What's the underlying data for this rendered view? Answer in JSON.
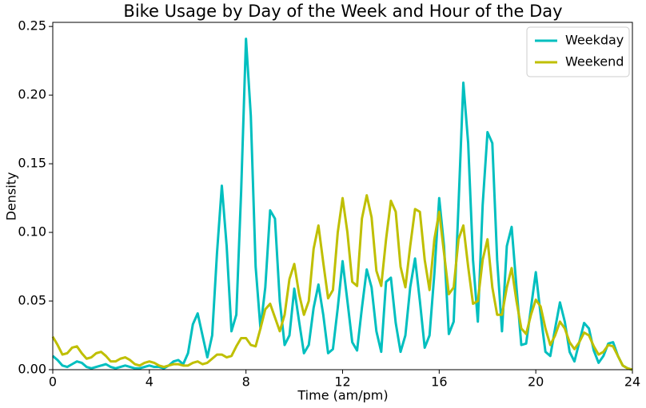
{
  "chart_data": {
    "type": "line",
    "title": "Bike Usage by Day of the Week and Hour of the Day",
    "x_label": "Time (am/pm)",
    "y_label": "Density",
    "x": [
      0,
      0.2,
      0.4,
      0.6,
      0.8,
      1,
      1.2,
      1.4,
      1.6,
      1.8,
      2,
      2.2,
      2.4,
      2.6,
      2.8,
      3,
      3.2,
      3.4,
      3.6,
      3.8,
      4,
      4.2,
      4.4,
      4.6,
      4.8,
      5,
      5.2,
      5.4,
      5.6,
      5.8,
      6,
      6.2,
      6.4,
      6.6,
      6.8,
      7,
      7.2,
      7.4,
      7.6,
      7.8,
      8,
      8.2,
      8.4,
      8.6,
      8.8,
      9,
      9.2,
      9.4,
      9.6,
      9.8,
      10,
      10.2,
      10.4,
      10.6,
      10.8,
      11,
      11.2,
      11.4,
      11.6,
      11.8,
      12,
      12.2,
      12.4,
      12.6,
      12.8,
      13,
      13.2,
      13.4,
      13.6,
      13.8,
      14,
      14.2,
      14.4,
      14.6,
      14.8,
      15,
      15.2,
      15.4,
      15.6,
      15.8,
      16,
      16.2,
      16.4,
      16.6,
      16.8,
      17,
      17.2,
      17.4,
      17.6,
      17.8,
      18,
      18.2,
      18.4,
      18.6,
      18.8,
      19,
      19.2,
      19.4,
      19.6,
      19.8,
      20,
      20.2,
      20.4,
      20.6,
      20.8,
      21,
      21.2,
      21.4,
      21.6,
      21.8,
      22,
      22.2,
      22.4,
      22.6,
      22.8,
      23,
      23.2,
      23.4,
      23.6,
      23.8,
      24
    ],
    "series": [
      {
        "name": "Weekday",
        "color": "#00bfbf",
        "values": [
          0.01,
          0.007,
          0.003,
          0.002,
          0.004,
          0.006,
          0.005,
          0.002,
          0.001,
          0.002,
          0.003,
          0.004,
          0.002,
          0.001,
          0.002,
          0.003,
          0.002,
          0.001,
          0.001,
          0.002,
          0.003,
          0.002,
          0.002,
          0.001,
          0.003,
          0.006,
          0.007,
          0.004,
          0.012,
          0.033,
          0.041,
          0.025,
          0.009,
          0.025,
          0.085,
          0.134,
          0.09,
          0.028,
          0.04,
          0.13,
          0.241,
          0.185,
          0.075,
          0.03,
          0.06,
          0.116,
          0.11,
          0.05,
          0.018,
          0.025,
          0.059,
          0.035,
          0.012,
          0.018,
          0.045,
          0.062,
          0.04,
          0.012,
          0.015,
          0.045,
          0.079,
          0.05,
          0.02,
          0.014,
          0.045,
          0.073,
          0.06,
          0.028,
          0.013,
          0.064,
          0.067,
          0.034,
          0.013,
          0.025,
          0.06,
          0.081,
          0.05,
          0.016,
          0.025,
          0.07,
          0.125,
          0.09,
          0.026,
          0.035,
          0.12,
          0.209,
          0.165,
          0.08,
          0.035,
          0.12,
          0.173,
          0.165,
          0.08,
          0.028,
          0.09,
          0.104,
          0.06,
          0.018,
          0.019,
          0.045,
          0.071,
          0.04,
          0.013,
          0.01,
          0.03,
          0.049,
          0.035,
          0.013,
          0.006,
          0.02,
          0.034,
          0.03,
          0.014,
          0.005,
          0.01,
          0.019,
          0.02,
          0.01,
          0.003,
          0.001,
          0
        ]
      },
      {
        "name": "Weekend",
        "color": "#bfbf00",
        "values": [
          0.024,
          0.018,
          0.011,
          0.012,
          0.016,
          0.017,
          0.012,
          0.008,
          0.009,
          0.012,
          0.013,
          0.01,
          0.006,
          0.006,
          0.008,
          0.009,
          0.007,
          0.004,
          0.003,
          0.005,
          0.006,
          0.005,
          0.003,
          0.002,
          0.003,
          0.004,
          0.004,
          0.003,
          0.003,
          0.005,
          0.006,
          0.004,
          0.005,
          0.008,
          0.011,
          0.011,
          0.009,
          0.01,
          0.017,
          0.023,
          0.023,
          0.018,
          0.017,
          0.03,
          0.044,
          0.048,
          0.038,
          0.028,
          0.04,
          0.066,
          0.077,
          0.055,
          0.04,
          0.05,
          0.088,
          0.105,
          0.078,
          0.052,
          0.058,
          0.1,
          0.125,
          0.1,
          0.064,
          0.061,
          0.11,
          0.127,
          0.111,
          0.072,
          0.061,
          0.095,
          0.123,
          0.115,
          0.075,
          0.06,
          0.09,
          0.117,
          0.115,
          0.08,
          0.058,
          0.095,
          0.115,
          0.085,
          0.055,
          0.06,
          0.095,
          0.105,
          0.075,
          0.048,
          0.05,
          0.08,
          0.095,
          0.06,
          0.04,
          0.04,
          0.06,
          0.074,
          0.05,
          0.03,
          0.026,
          0.04,
          0.051,
          0.046,
          0.03,
          0.018,
          0.025,
          0.035,
          0.03,
          0.02,
          0.015,
          0.02,
          0.027,
          0.025,
          0.017,
          0.011,
          0.013,
          0.018,
          0.017,
          0.01,
          0.003,
          0.001,
          0
        ]
      }
    ],
    "xlim": [
      0,
      24
    ],
    "xticks": [
      0,
      4,
      8,
      12,
      16,
      20,
      24
    ],
    "ylim": [
      0,
      0.253
    ],
    "yticks": [
      {
        "value": 0,
        "label": "0.00"
      },
      0.05,
      {
        "value": 0.1,
        "label": "0.10"
      },
      0.15,
      {
        "value": 0.2,
        "label": "0.20"
      },
      0.25
    ],
    "grid": false,
    "legend": "upper right"
  }
}
